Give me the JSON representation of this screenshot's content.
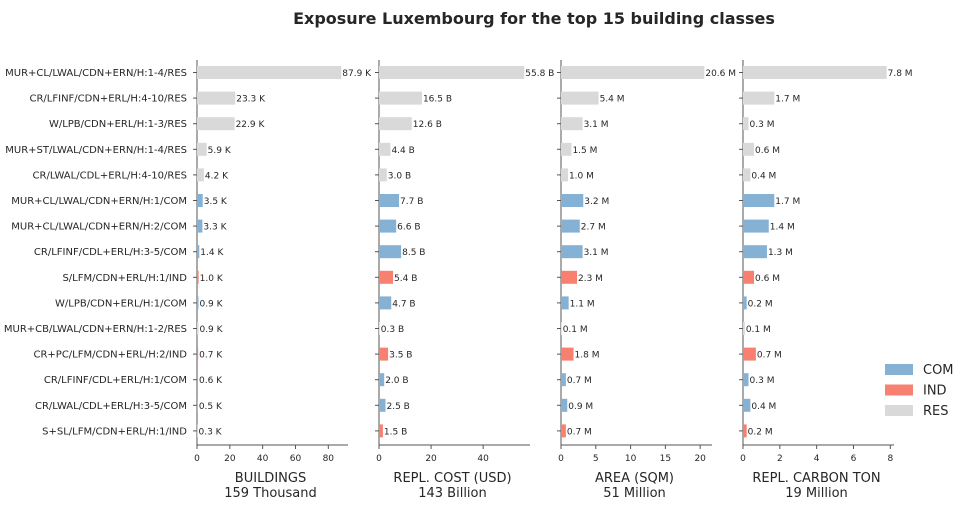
{
  "chart_data": {
    "type": "bar",
    "orientation": "horizontal",
    "title": "Exposure Luxembourg for the top 15 building classes",
    "categories": [
      "MUR+CL/LWAL/CDN+ERN/H:1-4/RES",
      "CR/LFINF/CDN+ERL/H:4-10/RES",
      "W/LPB/CDN+ERL/H:1-3/RES",
      "MUR+ST/LWAL/CDN+ERN/H:1-4/RES",
      "CR/LWAL/CDL+ERL/H:4-10/RES",
      "MUR+CL/LWAL/CDN+ERN/H:1/COM",
      "MUR+CL/LWAL/CDN+ERN/H:2/COM",
      "CR/LFINF/CDL+ERL/H:3-5/COM",
      "S/LFM/CDN+ERL/H:1/IND",
      "W/LPB/CDN+ERL/H:1/COM",
      "MUR+CB/LWAL/CDN+ERN/H:1-2/RES",
      "CR+PC/LFM/CDN+ERL/H:2/IND",
      "CR/LFINF/CDL+ERL/H:1/COM",
      "CR/LWAL/CDL+ERL/H:3-5/COM",
      "S+SL/LFM/CDN+ERL/H:1/IND"
    ],
    "occupancy": [
      "RES",
      "RES",
      "RES",
      "RES",
      "RES",
      "COM",
      "COM",
      "COM",
      "IND",
      "COM",
      "RES",
      "IND",
      "COM",
      "COM",
      "IND"
    ],
    "legend": {
      "placement": "center-right",
      "entries": [
        {
          "name": "COM",
          "color": "#85b1d4"
        },
        {
          "name": "IND",
          "color": "#f88070"
        },
        {
          "name": "RES",
          "color": "#d9d9d9"
        }
      ]
    },
    "panels": [
      {
        "xlabel": "BUILDINGS",
        "total": "159 Thousand",
        "xlim": [
          0,
          92
        ],
        "ticks": [
          0,
          20,
          40,
          60,
          80
        ],
        "values": [
          87.9,
          23.3,
          22.9,
          5.9,
          4.2,
          3.5,
          3.3,
          1.4,
          1.0,
          0.9,
          0.9,
          0.7,
          0.6,
          0.5,
          0.3
        ],
        "labels": [
          "87.9 K",
          "23.3 K",
          "22.9 K",
          "5.9 K",
          "4.2 K",
          "3.5 K",
          "3.3 K",
          "1.4 K",
          "1.0 K",
          "0.9 K",
          "0.9 K",
          "0.7 K",
          "0.6 K",
          "0.5 K",
          "0.3 K"
        ]
      },
      {
        "xlabel": "REPL. COST (USD)",
        "total": "143 Billion",
        "xlim": [
          0,
          58
        ],
        "ticks": [
          0,
          20,
          40
        ],
        "values": [
          55.8,
          16.5,
          12.6,
          4.4,
          3.0,
          7.7,
          6.6,
          8.5,
          5.4,
          4.7,
          0.3,
          3.5,
          2.0,
          2.5,
          1.5
        ],
        "labels": [
          "55.8 B",
          "16.5 B",
          "12.6 B",
          "4.4 B",
          "3.0 B",
          "7.7 B",
          "6.6 B",
          "8.5 B",
          "5.4 B",
          "4.7 B",
          "0.3 B",
          "3.5 B",
          "2.0 B",
          "2.5 B",
          "1.5 B"
        ]
      },
      {
        "xlabel": "AREA (SQM)",
        "total": "51 Million",
        "xlim": [
          0,
          21.7
        ],
        "ticks": [
          0,
          5,
          10,
          15,
          20
        ],
        "values": [
          20.6,
          5.4,
          3.1,
          1.5,
          1.0,
          3.2,
          2.7,
          3.1,
          2.3,
          1.1,
          0.1,
          1.8,
          0.7,
          0.9,
          0.7
        ],
        "labels": [
          "20.6 M",
          "5.4 M",
          "3.1 M",
          "1.5 M",
          "1.0 M",
          "3.2 M",
          "2.7 M",
          "3.1 M",
          "2.3 M",
          "1.1 M",
          "0.1 M",
          "1.8 M",
          "0.7 M",
          "0.9 M",
          "0.7 M"
        ]
      },
      {
        "xlabel": "REPL. CARBON TON",
        "total": "19 Million",
        "xlim": [
          0,
          8.2
        ],
        "ticks": [
          0,
          2,
          4,
          6,
          8
        ],
        "values": [
          7.8,
          1.7,
          0.3,
          0.6,
          0.4,
          1.7,
          1.4,
          1.3,
          0.6,
          0.2,
          0.1,
          0.7,
          0.3,
          0.4,
          0.2
        ],
        "labels": [
          "7.8 M",
          "1.7 M",
          "0.3 M",
          "0.6 M",
          "0.4 M",
          "1.7 M",
          "1.4 M",
          "1.3 M",
          "0.6 M",
          "0.2 M",
          "0.1 M",
          "0.7 M",
          "0.3 M",
          "0.4 M",
          "0.2 M"
        ]
      }
    ]
  }
}
